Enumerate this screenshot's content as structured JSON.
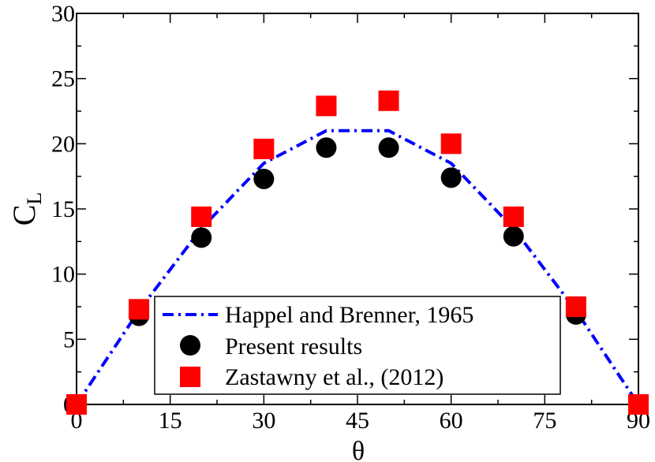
{
  "chart_data": {
    "type": "scatter",
    "xlabel": "θ",
    "ylabel": "C",
    "ylabel_subscript": "L",
    "xlim": [
      0,
      90
    ],
    "ylim": [
      0,
      30
    ],
    "x_ticks": [
      0,
      15,
      30,
      45,
      60,
      75,
      90
    ],
    "y_ticks": [
      0,
      5,
      10,
      15,
      20,
      25,
      30
    ],
    "x_tick_labels": [
      "0",
      "15",
      "30",
      "45",
      "60",
      "75",
      "90"
    ],
    "y_tick_labels": [
      "0",
      "5",
      "10",
      "15",
      "20",
      "25",
      "30"
    ],
    "grid": false,
    "legend_position": "bottom-center",
    "series": [
      {
        "name": "Happel and Brenner, 1965",
        "kind": "line",
        "style": "dash-dot",
        "color": "#0000ff",
        "x": [
          0,
          10,
          20,
          30,
          40,
          45,
          50,
          60,
          70,
          80,
          90
        ],
        "y": [
          0,
          7.2,
          13.5,
          18.5,
          21.0,
          21.0,
          21.0,
          18.5,
          13.5,
          7.2,
          0
        ]
      },
      {
        "name": "Present results",
        "kind": "marker",
        "marker": "circle",
        "color": "#000000",
        "x": [
          0,
          10,
          20,
          30,
          40,
          50,
          60,
          70,
          80,
          90
        ],
        "y": [
          0,
          6.8,
          12.8,
          17.3,
          19.7,
          19.7,
          17.4,
          12.9,
          6.9,
          0
        ]
      },
      {
        "name": "Zastawny et al., (2012)",
        "kind": "marker",
        "marker": "square",
        "color": "#ff0000",
        "x": [
          0,
          10,
          20,
          30,
          40,
          50,
          60,
          70,
          80,
          90
        ],
        "y": [
          0,
          7.3,
          14.4,
          19.6,
          22.9,
          23.3,
          20.0,
          14.4,
          7.5,
          0
        ]
      }
    ]
  }
}
